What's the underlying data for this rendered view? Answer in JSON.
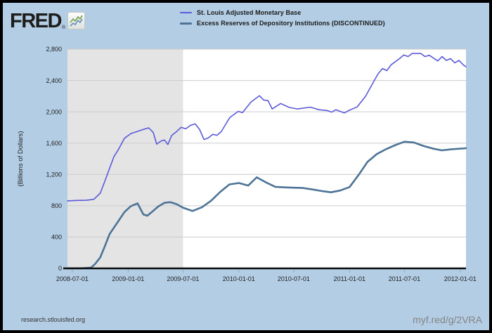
{
  "header": {
    "logo_text": "FRED",
    "logo_reg": "®",
    "logo_icon": "fred-sparkline-icon",
    "logo_icon_colors": {
      "green_line": "#7ca65a",
      "blue_line": "#6f94b8"
    }
  },
  "legend": [
    {
      "label": "St. Louis Adjusted Monetary Base",
      "color": "#5a5ada"
    },
    {
      "label": "Excess Reserves of Depository Institutions (DISCONTINUED)",
      "color": "#4d7396"
    }
  ],
  "footer": {
    "left": "research.stlouisfed.org",
    "right": "myf.red/g/2VRA"
  },
  "colors": {
    "page_background": "#b3cde4",
    "plot_background": "#ffffff",
    "recession_band": "#e4e4e4",
    "gridline": "#cccccc",
    "axis": "#0a0a0a",
    "tick_mark": "#94a8bd",
    "tick_text": "#222222"
  },
  "chart_data": {
    "type": "line",
    "title": "",
    "xlabel": "",
    "ylabel": "(Billions of Dollars)",
    "ylim": [
      0,
      2800
    ],
    "y_ticks": [
      0,
      400,
      800,
      1200,
      1600,
      2000,
      2400,
      2800
    ],
    "y_tick_labels": [
      "0",
      "400",
      "800",
      "1,200",
      "1,600",
      "2,000",
      "2,400",
      "2,800"
    ],
    "x_domain": [
      "2008-06-15",
      "2012-01-20"
    ],
    "x_ticks": [
      "2008-07-01",
      "2009-01-01",
      "2009-07-01",
      "2010-01-01",
      "2010-07-01",
      "2011-01-01",
      "2011-07-01",
      "2012-01-01"
    ],
    "grid": true,
    "legend_position": "top",
    "recession_band": {
      "start": "2008-06-15",
      "end": "2009-07-01"
    },
    "series": [
      {
        "name": "St. Louis Adjusted Monetary Base",
        "color": "#5a5ada",
        "stroke_width": 1.6,
        "points": [
          [
            "2008-06-15",
            862
          ],
          [
            "2008-07-15",
            868
          ],
          [
            "2008-08-15",
            870
          ],
          [
            "2008-09-10",
            882
          ],
          [
            "2008-10-01",
            960
          ],
          [
            "2008-10-15",
            1100
          ],
          [
            "2008-11-01",
            1280
          ],
          [
            "2008-11-15",
            1425
          ],
          [
            "2008-12-01",
            1525
          ],
          [
            "2008-12-20",
            1662
          ],
          [
            "2009-01-10",
            1722
          ],
          [
            "2009-02-01",
            1750
          ],
          [
            "2009-02-20",
            1775
          ],
          [
            "2009-03-10",
            1795
          ],
          [
            "2009-03-25",
            1735
          ],
          [
            "2009-04-05",
            1588
          ],
          [
            "2009-04-20",
            1628
          ],
          [
            "2009-05-01",
            1640
          ],
          [
            "2009-05-12",
            1582
          ],
          [
            "2009-05-25",
            1700
          ],
          [
            "2009-06-10",
            1748
          ],
          [
            "2009-06-25",
            1802
          ],
          [
            "2009-07-10",
            1782
          ],
          [
            "2009-07-25",
            1826
          ],
          [
            "2009-08-10",
            1846
          ],
          [
            "2009-08-25",
            1772
          ],
          [
            "2009-09-08",
            1646
          ],
          [
            "2009-09-22",
            1666
          ],
          [
            "2009-10-07",
            1712
          ],
          [
            "2009-10-21",
            1700
          ],
          [
            "2009-11-04",
            1746
          ],
          [
            "2009-11-18",
            1836
          ],
          [
            "2009-12-02",
            1926
          ],
          [
            "2009-12-30",
            2006
          ],
          [
            "2010-01-13",
            1990
          ],
          [
            "2010-02-10",
            2124
          ],
          [
            "2010-03-10",
            2206
          ],
          [
            "2010-03-24",
            2150
          ],
          [
            "2010-04-07",
            2144
          ],
          [
            "2010-04-21",
            2036
          ],
          [
            "2010-05-19",
            2106
          ],
          [
            "2010-06-16",
            2056
          ],
          [
            "2010-07-14",
            2036
          ],
          [
            "2010-08-25",
            2060
          ],
          [
            "2010-09-22",
            2026
          ],
          [
            "2010-10-20",
            2016
          ],
          [
            "2010-11-03",
            1996
          ],
          [
            "2010-11-17",
            2026
          ],
          [
            "2010-12-15",
            1986
          ],
          [
            "2010-12-29",
            2016
          ],
          [
            "2011-01-26",
            2062
          ],
          [
            "2011-02-23",
            2200
          ],
          [
            "2011-03-23",
            2396
          ],
          [
            "2011-04-06",
            2490
          ],
          [
            "2011-04-20",
            2552
          ],
          [
            "2011-05-04",
            2526
          ],
          [
            "2011-05-18",
            2600
          ],
          [
            "2011-06-15",
            2680
          ],
          [
            "2011-06-29",
            2726
          ],
          [
            "2011-07-13",
            2706
          ],
          [
            "2011-07-27",
            2746
          ],
          [
            "2011-08-24",
            2744
          ],
          [
            "2011-09-07",
            2706
          ],
          [
            "2011-09-21",
            2722
          ],
          [
            "2011-10-05",
            2686
          ],
          [
            "2011-10-19",
            2650
          ],
          [
            "2011-11-02",
            2706
          ],
          [
            "2011-11-16",
            2656
          ],
          [
            "2011-11-30",
            2680
          ],
          [
            "2011-12-14",
            2626
          ],
          [
            "2011-12-28",
            2656
          ],
          [
            "2012-01-11",
            2600
          ],
          [
            "2012-01-20",
            2576
          ]
        ]
      },
      {
        "name": "Excess Reserves of Depository Institutions (DISCONTINUED)",
        "color": "#4d7396",
        "stroke_width": 2.6,
        "points": [
          [
            "2008-06-15",
            2
          ],
          [
            "2008-08-01",
            2
          ],
          [
            "2008-09-01",
            10
          ],
          [
            "2008-09-15",
            60
          ],
          [
            "2008-10-01",
            140
          ],
          [
            "2008-10-15",
            270
          ],
          [
            "2008-11-01",
            440
          ],
          [
            "2008-12-01",
            610
          ],
          [
            "2008-12-20",
            720
          ],
          [
            "2009-01-10",
            795
          ],
          [
            "2009-02-01",
            830
          ],
          [
            "2009-02-20",
            690
          ],
          [
            "2009-03-05",
            672
          ],
          [
            "2009-03-20",
            720
          ],
          [
            "2009-04-10",
            790
          ],
          [
            "2009-05-01",
            838
          ],
          [
            "2009-05-20",
            845
          ],
          [
            "2009-06-10",
            820
          ],
          [
            "2009-07-01",
            775
          ],
          [
            "2009-08-01",
            733
          ],
          [
            "2009-09-01",
            780
          ],
          [
            "2009-10-01",
            862
          ],
          [
            "2009-11-01",
            978
          ],
          [
            "2009-12-01",
            1072
          ],
          [
            "2010-01-01",
            1090
          ],
          [
            "2010-02-01",
            1058
          ],
          [
            "2010-03-01",
            1163
          ],
          [
            "2010-04-01",
            1098
          ],
          [
            "2010-05-01",
            1042
          ],
          [
            "2010-06-01",
            1035
          ],
          [
            "2010-07-01",
            1030
          ],
          [
            "2010-08-01",
            1027
          ],
          [
            "2010-09-01",
            1008
          ],
          [
            "2010-10-01",
            988
          ],
          [
            "2010-11-01",
            972
          ],
          [
            "2010-12-01",
            994
          ],
          [
            "2011-01-01",
            1038
          ],
          [
            "2011-02-01",
            1200
          ],
          [
            "2011-03-01",
            1360
          ],
          [
            "2011-04-01",
            1460
          ],
          [
            "2011-05-01",
            1522
          ],
          [
            "2011-06-01",
            1575
          ],
          [
            "2011-07-01",
            1618
          ],
          [
            "2011-08-01",
            1608
          ],
          [
            "2011-09-01",
            1565
          ],
          [
            "2011-10-01",
            1532
          ],
          [
            "2011-11-01",
            1508
          ],
          [
            "2011-12-01",
            1520
          ],
          [
            "2012-01-20",
            1535
          ]
        ]
      }
    ]
  }
}
